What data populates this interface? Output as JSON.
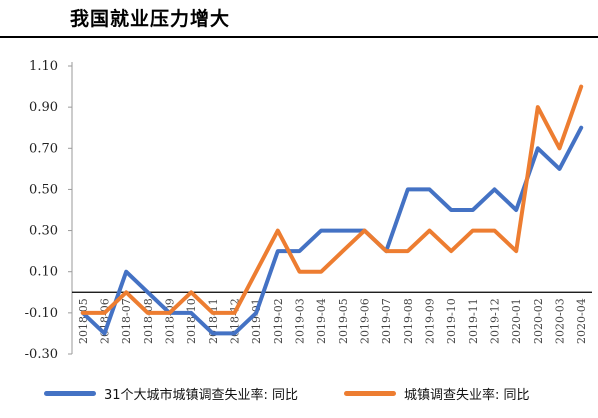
{
  "title": "我国就业压力增大",
  "chart_data": {
    "type": "line",
    "x": [
      "2018-05",
      "2018-06",
      "2018-07",
      "2018-08",
      "2018-09",
      "2018-10",
      "2018-11",
      "2018-12",
      "2019-01",
      "2019-02",
      "2019-03",
      "2019-04",
      "2019-05",
      "2019-06",
      "2019-07",
      "2019-08",
      "2019-09",
      "2019-10",
      "2019-11",
      "2019-12",
      "2020-01",
      "2020-02",
      "2020-03",
      "2020-04"
    ],
    "x_tick_labels": [
      "2018-05",
      "2018-06",
      "2018-07",
      "2018-08",
      "2018-09",
      "2018-10",
      "2018-11",
      "2018-12",
      "2019-01",
      "2019-02",
      "2019-03",
      "2019-04",
      "2019-05",
      "2019-06",
      "2019-07",
      "2019-08",
      "2019-09",
      "2019-10",
      "2019-11",
      "2019-12",
      "2020-01",
      "2020-02",
      "2020-03",
      "2020-04"
    ],
    "y_tick_labels": [
      "1.10",
      "0.90",
      "0.70",
      "0.50",
      "0.30",
      "0.10",
      "-0.10",
      "-0.30"
    ],
    "ylim": [
      -0.3,
      1.1
    ],
    "series": [
      {
        "name": "31个大城市城镇调查失业率: 同比",
        "color": "#4472C4",
        "values": [
          -0.1,
          -0.2,
          0.1,
          0.0,
          -0.1,
          -0.1,
          -0.2,
          -0.2,
          -0.1,
          0.2,
          0.2,
          0.3,
          0.3,
          0.3,
          0.2,
          0.5,
          0.5,
          0.4,
          0.4,
          0.5,
          0.4,
          0.7,
          0.6,
          0.8
        ]
      },
      {
        "name": "城镇调查失业率: 同比",
        "color": "#ED7D31",
        "values": [
          -0.1,
          -0.1,
          0.0,
          -0.1,
          -0.1,
          0.0,
          -0.1,
          -0.1,
          0.1,
          0.3,
          0.1,
          0.1,
          0.2,
          0.3,
          0.2,
          0.2,
          0.3,
          0.2,
          0.3,
          0.3,
          0.2,
          0.9,
          0.7,
          1.0
        ]
      }
    ],
    "grid": false,
    "legend_position": "bottom"
  }
}
